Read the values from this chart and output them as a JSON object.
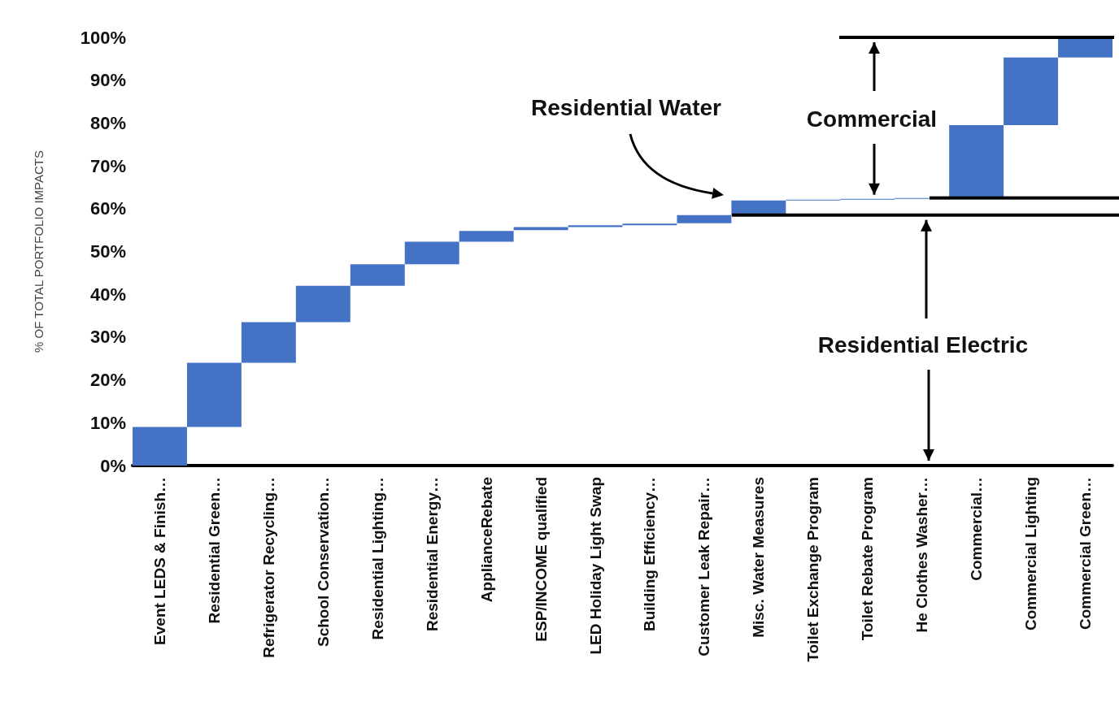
{
  "chart_data": {
    "type": "bar",
    "ylabel": "% OF TOTAL PORTFOLIO IMPACTS",
    "categories": [
      "Event LEDS & Finish…",
      "Residential Green…",
      "Refrigerator Recycling…",
      "School Conservation…",
      "Residential Lighting…",
      "Residential Energy…",
      "ApplianceRebate",
      "ESP/INCOME qualified",
      "LED Holiday Light Swap",
      "Building Efficiency…",
      "Customer Leak Repair…",
      "Misc. Water Measures",
      "Toilet Exchange Program",
      "Toilet Rebate Program",
      "He Clothes Washer…",
      "Commercial…",
      "Commercial Lighting",
      "Commercial Green…"
    ],
    "base": [
      0,
      9,
      24,
      33.5,
      42,
      47,
      52.3,
      55,
      55.7,
      56.1,
      56.6,
      58.5,
      61.9,
      62.1,
      62.3,
      62.5,
      79.5,
      95.3
    ],
    "values": [
      9,
      15,
      9.5,
      8.5,
      5,
      5.3,
      2.5,
      0.7,
      0.4,
      0.4,
      1.9,
      3.4,
      0.2,
      0.2,
      0.2,
      17,
      15.8,
      4.7
    ],
    "color": "#4472c4",
    "ylim": [
      0,
      100
    ],
    "yticks": [
      {
        "value": 0,
        "label": "0%"
      },
      {
        "value": 10,
        "label": "10%"
      },
      {
        "value": 20,
        "label": "20%"
      },
      {
        "value": 30,
        "label": "30%"
      },
      {
        "value": 40,
        "label": "40%"
      },
      {
        "value": 50,
        "label": "50%"
      },
      {
        "value": 60,
        "label": "60%"
      },
      {
        "value": 70,
        "label": "70%"
      },
      {
        "value": 80,
        "label": "80%"
      },
      {
        "value": 90,
        "label": "90%"
      },
      {
        "value": 100,
        "label": "100%"
      }
    ],
    "grid": false,
    "annotations": [
      "Residential Water",
      "Commercial",
      "Residential Electric"
    ]
  }
}
